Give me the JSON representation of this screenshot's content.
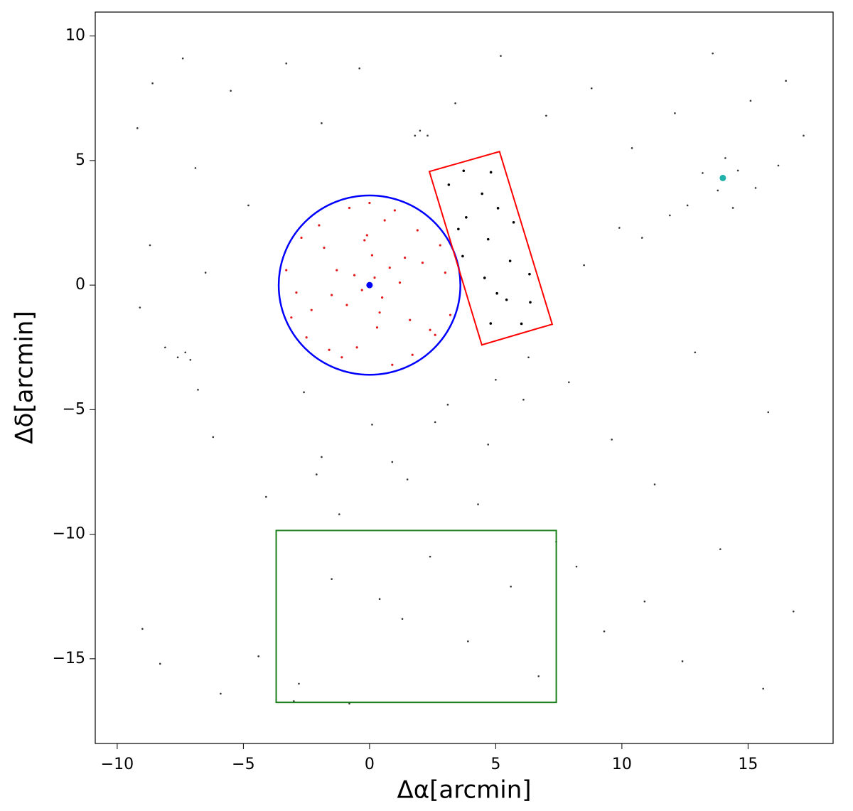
{
  "chart_data": {
    "type": "scatter",
    "xlabel": "Δα[arcmin]",
    "ylabel": "Δδ[arcmin]",
    "xlim": [
      -10.87,
      18.37
    ],
    "ylim": [
      -18.4,
      10.96
    ],
    "xticks": [
      {
        "value": -10,
        "label": "−10"
      },
      {
        "value": -5,
        "label": "−5"
      },
      0,
      5,
      10,
      15
    ],
    "yticks": [
      {
        "value": -15,
        "label": "−15"
      },
      {
        "value": -10,
        "label": "−10"
      },
      {
        "value": -5,
        "label": "−5"
      },
      0,
      5,
      10
    ],
    "series": [
      {
        "color": "#333333",
        "size": 1.3,
        "x": [
          -9.2,
          -8.6,
          -8.1,
          -7.4,
          -6.9,
          -6.2,
          -5.5,
          -4.8,
          -4.1,
          -3.3,
          -2.6,
          -1.9,
          -1.2,
          -0.4,
          0.9,
          1.8,
          2.6,
          3.4,
          4.3,
          5.2,
          6.1,
          7.0,
          7.9,
          8.8,
          9.6,
          10.4,
          11.3,
          12.1,
          12.9,
          13.6,
          14.4,
          15.1,
          15.8,
          16.5,
          17.2,
          13.2,
          13.8,
          14.6,
          15.3,
          12.6,
          11.9,
          14.1,
          16.2,
          10.8,
          9.9,
          8.5,
          -7.3,
          -7.1,
          -7.6,
          -6.8,
          -9.0,
          -8.3,
          -5.9,
          -4.4,
          -2.8,
          -1.5,
          0.4,
          1.3,
          2.4,
          3.9,
          5.6,
          6.7,
          8.2,
          9.3,
          10.9,
          12.4,
          13.9,
          15.6,
          16.8,
          -9.1,
          -8.7,
          -6.5,
          2.0,
          2.3,
          -1.9,
          -2.1,
          0.1,
          3.1,
          5.0,
          6.3,
          1.5,
          -0.8,
          -3.0,
          4.7,
          7.4
        ],
        "y": [
          6.3,
          8.1,
          -2.5,
          9.1,
          4.7,
          -6.1,
          7.8,
          3.2,
          -8.5,
          8.9,
          -4.3,
          6.5,
          -9.2,
          8.7,
          -7.1,
          6.0,
          -5.5,
          7.3,
          -8.8,
          9.2,
          -4.6,
          6.8,
          -3.9,
          7.9,
          -6.2,
          5.5,
          -8.0,
          6.9,
          -2.7,
          9.3,
          3.1,
          7.4,
          -5.1,
          8.2,
          6.0,
          4.5,
          3.8,
          4.6,
          3.9,
          3.2,
          2.8,
          5.1,
          4.8,
          1.9,
          2.3,
          0.8,
          -2.7,
          -3.0,
          -2.9,
          -4.2,
          -13.8,
          -15.2,
          -16.4,
          -14.9,
          -16.0,
          -11.8,
          -12.6,
          -13.4,
          -10.9,
          -14.3,
          -12.1,
          -15.7,
          -11.3,
          -13.9,
          -12.7,
          -15.1,
          -10.6,
          -16.2,
          -13.1,
          -0.9,
          1.6,
          0.5,
          6.2,
          6.0,
          -6.9,
          -7.6,
          -5.6,
          -4.8,
          -3.8,
          -2.9,
          -7.8,
          -16.8,
          -16.7,
          -6.4,
          -10.3
        ]
      },
      {
        "color": "#e31a1c",
        "size": 1.6,
        "x": [
          0.2,
          -0.3,
          0.5,
          -0.6,
          0.8,
          -0.9,
          1.2,
          -1.3,
          0.1,
          0.4,
          -0.2,
          1.6,
          -1.8,
          2.1,
          -2.3,
          2.6,
          -2.7,
          3.0,
          -3.1,
          0.6,
          -0.5,
          1.0,
          -1.1,
          1.9,
          -2.0,
          2.4,
          -2.5,
          0.9,
          -0.8,
          3.2,
          -3.3,
          1.4,
          -1.5,
          0.3,
          -0.1,
          2.8,
          -2.9,
          1.7,
          -1.6,
          0.0
        ],
        "y": [
          0.3,
          -0.2,
          -0.5,
          0.4,
          0.7,
          -0.8,
          0.1,
          0.6,
          1.2,
          -1.1,
          1.8,
          -1.4,
          1.5,
          0.9,
          -1.0,
          -2.0,
          1.9,
          0.5,
          -1.3,
          2.6,
          -2.5,
          3.0,
          -2.9,
          2.2,
          2.4,
          -1.8,
          -2.1,
          -3.2,
          3.1,
          -1.2,
          0.6,
          1.1,
          -0.4,
          -1.7,
          2.0,
          1.6,
          -0.3,
          -2.8,
          -2.6,
          3.3
        ]
      },
      {
        "color": "#000000",
        "size": 1.8,
        "x": [
          4.8,
          5.43,
          6.37,
          4.56,
          5.57,
          3.69,
          4.7,
          5.71,
          3.83,
          4.46,
          3.14,
          4.81,
          5.05,
          6.34,
          3.52,
          5.09,
          3.73,
          6.02
        ],
        "y": [
          -1.54,
          -0.59,
          -0.69,
          0.29,
          0.97,
          1.16,
          1.84,
          2.52,
          2.72,
          3.67,
          4.03,
          4.53,
          -0.33,
          0.44,
          2.25,
          3.09,
          4.59,
          -1.55
        ]
      }
    ],
    "markers": [
      {
        "x": 0,
        "y": 0,
        "color": "#0000ff"
      },
      {
        "x": 14.0,
        "y": 4.3,
        "color": "#20b2aa"
      }
    ],
    "shapes": [
      {
        "type": "circle",
        "cx": 0,
        "cy": 0,
        "r": 3.6,
        "color": "#0000ff"
      },
      {
        "type": "polygon",
        "x": [
          2.37,
          5.15,
          7.24,
          4.45
        ],
        "y": [
          4.56,
          5.36,
          -1.57,
          -2.4
        ],
        "color": "#ff0000"
      },
      {
        "type": "rect",
        "x0": -3.7,
        "x1": 7.4,
        "y0": -16.75,
        "y1": -9.85,
        "color": "#1a7f1a"
      }
    ]
  }
}
